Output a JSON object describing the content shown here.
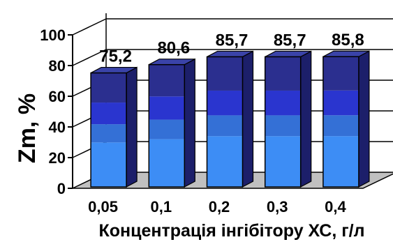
{
  "chart_data": {
    "type": "bar",
    "style": "3d-stacked-gradient",
    "title": "",
    "xlabel": "Концентрація інгібітору ХС, г/л",
    "ylabel": "Zm, %",
    "ylim": [
      0,
      100
    ],
    "yticks": [
      "0",
      "20",
      "40",
      "60",
      "80",
      "100"
    ],
    "categories": [
      "0,05",
      "0,1",
      "0,2",
      "0,3",
      "0,4"
    ],
    "values": [
      75.2,
      80.6,
      85.7,
      85.7,
      85.8
    ],
    "data_labels": [
      "75,2",
      "80,6",
      "85,7",
      "85,7",
      "85,8"
    ],
    "grid": true,
    "legend": "none",
    "colors": {
      "band_1": "#3d8df5",
      "band_2": "#3470d6",
      "band_3": "#2a35cf",
      "band_4": "#2b2f8f",
      "side": "#1c1f6a",
      "top": "#3a43a8",
      "floor": "#c0c0c0",
      "grid": "#000000"
    }
  }
}
